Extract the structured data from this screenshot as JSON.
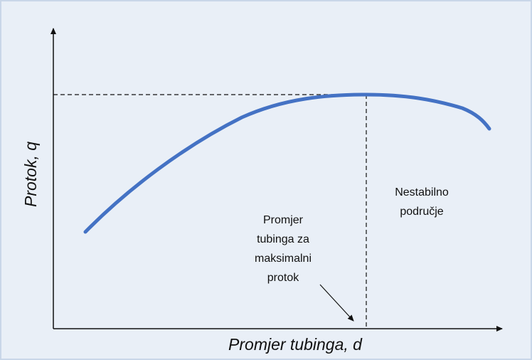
{
  "diagram": {
    "y_axis_label": "Protok, q",
    "x_axis_label": "Promjer tubinga, d",
    "unstable_region": {
      "lines": [
        "Nestabilno",
        "područje"
      ]
    },
    "max_flow_note": {
      "lines": [
        "Promjer",
        "tubinga za",
        "maksimalni",
        "protok"
      ]
    }
  }
}
